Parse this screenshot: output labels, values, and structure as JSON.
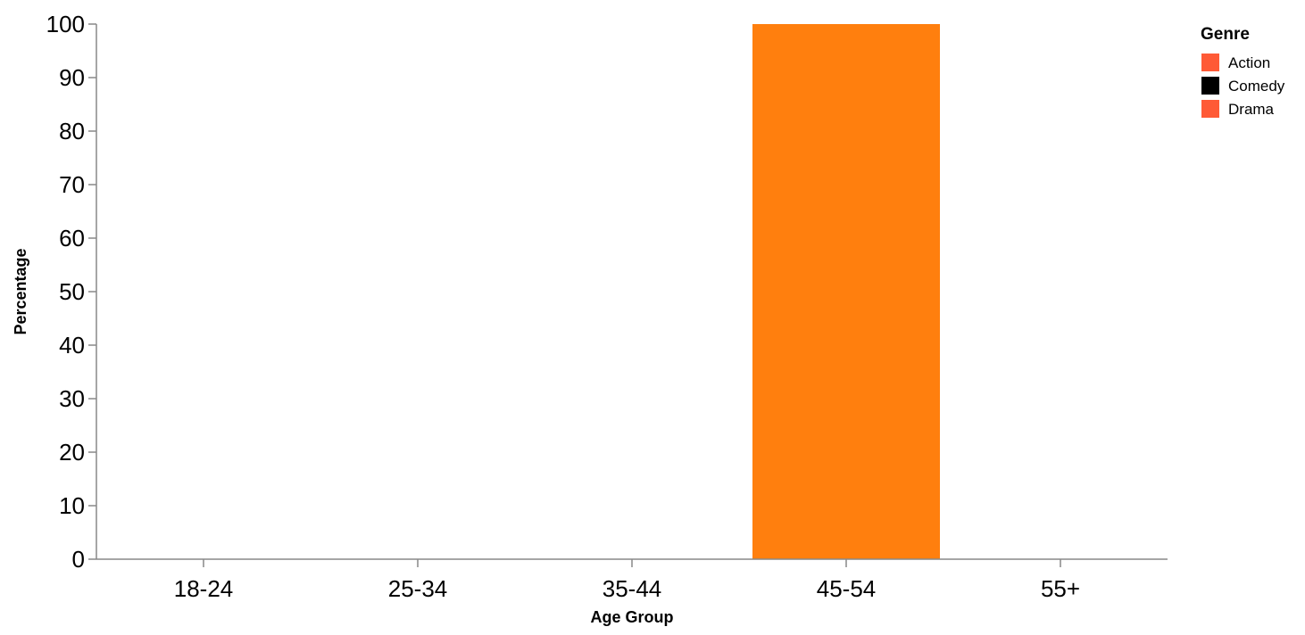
{
  "chart_data": {
    "type": "bar",
    "title": "",
    "xlabel": "Age Group",
    "ylabel": "Percentage",
    "categories": [
      "18-24",
      "25-34",
      "35-44",
      "45-54",
      "55+"
    ],
    "ylim": [
      0,
      100
    ],
    "yticks": [
      0,
      10,
      20,
      30,
      40,
      50,
      60,
      70,
      80,
      90,
      100
    ],
    "series": [
      {
        "name": "Action",
        "values": [
          0,
          0,
          0,
          0,
          0
        ]
      },
      {
        "name": "Comedy",
        "values": [
          0,
          0,
          0,
          0,
          0
        ]
      },
      {
        "name": "Drama",
        "values": [
          0,
          0,
          0,
          0,
          0
        ]
      }
    ],
    "bars": [
      {
        "category": "45-54",
        "value": 100,
        "color": "#ff7f0e"
      }
    ],
    "grid": false,
    "legend": {
      "title": "Genre",
      "position": "top-right",
      "entries": [
        {
          "name": "Action",
          "color": "#ff5a36"
        },
        {
          "name": "Comedy",
          "color": "#000000"
        },
        {
          "name": "Drama",
          "color": "#ff5a36"
        }
      ]
    },
    "axis_color": "#888888"
  }
}
